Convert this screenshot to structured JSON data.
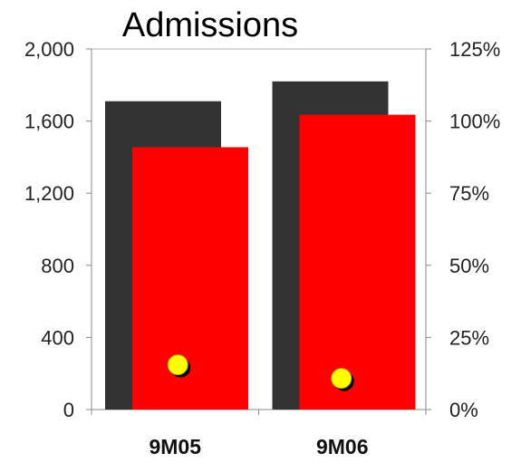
{
  "chart_data": {
    "type": "bar",
    "title": "Admissions",
    "xlabel": "",
    "ylabel": "",
    "categories": [
      "9M05",
      "9M06"
    ],
    "series": [
      {
        "axis": "left",
        "color": "#333333",
        "values": [
          1710,
          1820
        ]
      },
      {
        "axis": "left",
        "color": "#ff0000",
        "values": [
          1455,
          1635
        ]
      },
      {
        "type": "scatter",
        "axis": "right",
        "color": "#ffff00",
        "values": [
          15.5,
          10.8
        ]
      }
    ],
    "y_left": {
      "min": 0,
      "max": 2000,
      "ticks": [
        0,
        400,
        800,
        1200,
        1600,
        2000
      ],
      "tick_labels": [
        "0",
        "400",
        "800",
        "1,200",
        "1,600",
        "2,000"
      ]
    },
    "y_right": {
      "min": 0,
      "max": 125,
      "ticks": [
        0,
        25,
        50,
        75,
        100,
        125
      ],
      "tick_labels": [
        "0%",
        "25%",
        "50%",
        "75%",
        "100%",
        "125%"
      ]
    },
    "grid": false,
    "legend": "none"
  }
}
